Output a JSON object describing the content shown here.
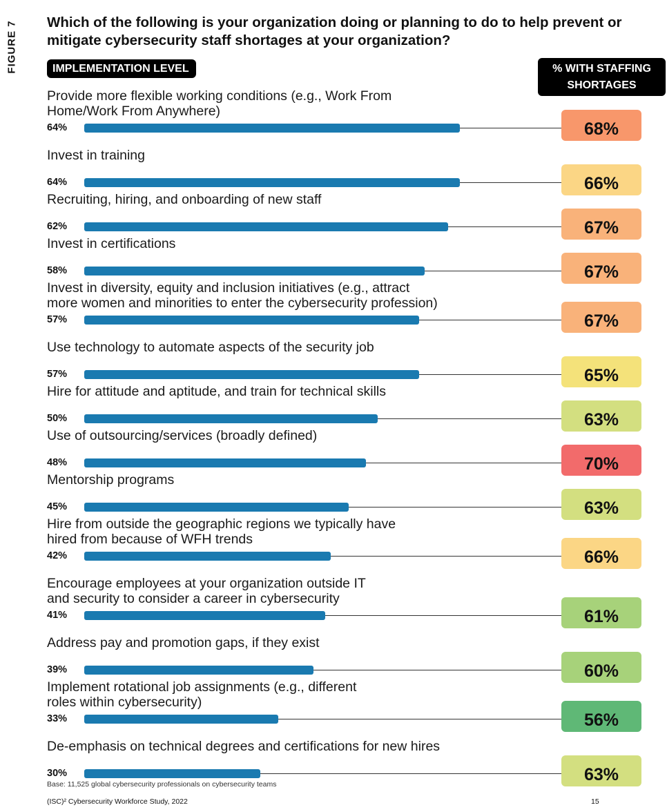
{
  "figure_label": "FIGURE 7",
  "question": "Which of the following is your organization doing or planning to do to help prevent or mitigate cybersecurity staff shortages at your organization?",
  "implementation_header": "IMPLEMENTATION LEVEL",
  "shortage_header_line1": "% WITH STAFFING",
  "shortage_header_line2": "SHORTAGES",
  "colors": {
    "bar": "#1a7ab0",
    "scale": {
      "56": "#5fb876",
      "60": "#a7d27a",
      "61": "#a7d27a",
      "63": "#d3df80",
      "65": "#f4e27a",
      "66": "#fbd685",
      "67": "#f9b27a",
      "68": "#f8976b",
      "70": "#f26b6b"
    }
  },
  "chart_data": {
    "type": "bar",
    "orientation": "horizontal",
    "xlim": [
      0,
      100
    ],
    "categories": [
      "Provide more flexible working conditions (e.g., Work From Home/Work From Anywhere)",
      "Invest in training",
      "Recruiting, hiring, and onboarding of new staff",
      "Invest in certifications",
      "Invest in diversity, equity and inclusion initiatives (e.g., attract more women and minorities to enter the cybersecurity profession)",
      "Use technology to automate aspects of the security job",
      "Hire for attitude and aptitude, and train for technical skills",
      "Use of outsourcing/services (broadly defined)",
      "Mentorship programs",
      "Hire from outside the geographic regions we typically have hired from because of WFH trends",
      "Encourage employees at your organization outside IT and security to consider a career in cybersecurity",
      "Address pay and promotion gaps, if they exist",
      "Implement rotational job assignments (e.g., different roles within cybersecurity)",
      "De-emphasis on technical degrees and certifications for new hires"
    ],
    "series": [
      {
        "name": "IMPLEMENTATION LEVEL",
        "values": [
          64,
          64,
          62,
          58,
          57,
          57,
          50,
          48,
          45,
          42,
          41,
          39,
          33,
          30
        ]
      },
      {
        "name": "% WITH STAFFING SHORTAGES",
        "values": [
          68,
          66,
          67,
          67,
          67,
          65,
          63,
          70,
          63,
          66,
          61,
          60,
          56,
          63
        ]
      }
    ]
  },
  "rows": [
    {
      "label_lines": [
        "Provide more flexible working conditions (e.g., Work From",
        "Home/Work From Anywhere)"
      ],
      "impl": "64%",
      "short": "68%"
    },
    {
      "label_lines": [
        "Invest in training"
      ],
      "impl": "64%",
      "short": "66%"
    },
    {
      "label_lines": [
        "Recruiting, hiring, and onboarding of new staff"
      ],
      "impl": "62%",
      "short": "67%"
    },
    {
      "label_lines": [
        "Invest in certifications"
      ],
      "impl": "58%",
      "short": "67%"
    },
    {
      "label_lines": [
        "Invest in diversity, equity and inclusion initiatives (e.g., attract",
        "more women and minorities to enter the cybersecurity profession)"
      ],
      "impl": "57%",
      "short": "67%"
    },
    {
      "label_lines": [
        "Use technology to automate aspects of the security job"
      ],
      "impl": "57%",
      "short": "65%"
    },
    {
      "label_lines": [
        "Hire for attitude and aptitude, and train for technical skills"
      ],
      "impl": "50%",
      "short": "63%"
    },
    {
      "label_lines": [
        "Use of outsourcing/services (broadly defined)"
      ],
      "impl": "48%",
      "short": "70%"
    },
    {
      "label_lines": [
        "Mentorship programs"
      ],
      "impl": "45%",
      "short": "63%"
    },
    {
      "label_lines": [
        "Hire from outside the geographic regions we typically have",
        "hired from because of WFH trends"
      ],
      "impl": "42%",
      "short": "66%"
    },
    {
      "label_lines": [
        "Encourage employees at your organization outside IT",
        "and security to consider a career in cybersecurity"
      ],
      "impl": "41%",
      "short": "61%"
    },
    {
      "label_lines": [
        "Address pay and promotion gaps, if they exist"
      ],
      "impl": "39%",
      "short": "60%"
    },
    {
      "label_lines": [
        "Implement rotational job assignments (e.g., different",
        "roles within cybersecurity)"
      ],
      "impl": "33%",
      "short": "56%"
    },
    {
      "label_lines": [
        "De-emphasis on technical degrees and certifications for new hires"
      ],
      "impl": "30%",
      "short": "63%"
    }
  ],
  "base_note": "Base: 11,525 global cybersecurity professionals on cybersecurity teams",
  "source_note": "(ISC)² Cybersecurity Workforce Study, 2022",
  "page_number": "15"
}
